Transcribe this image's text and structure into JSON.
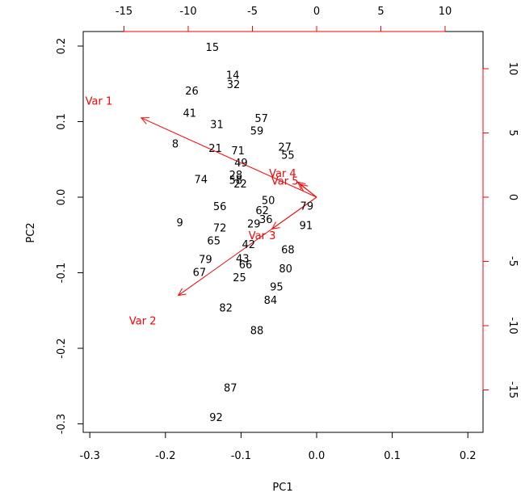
{
  "colors": {
    "axis": "#000000",
    "loading": "#ff0000",
    "obs": "#000000"
  },
  "chart_data": {
    "type": "scatter",
    "subtype": "biplot",
    "title": "",
    "xlabel": "PC1",
    "ylabel": "PC2",
    "xlim": [
      -0.3,
      0.2
    ],
    "ylim": [
      -0.3,
      0.2
    ],
    "xticks": [
      -0.3,
      -0.2,
      -0.1,
      0.0,
      0.1,
      0.2
    ],
    "xtick_labels": [
      "-0.3",
      "-0.2",
      "-0.1",
      "0.0",
      "0.1",
      "0.2"
    ],
    "yticks": [
      -0.3,
      -0.2,
      -0.1,
      0.0,
      0.1,
      0.2
    ],
    "ytick_labels": [
      "-0.3",
      "-0.2",
      "-0.1",
      "0.0",
      "0.1",
      "0.2"
    ],
    "top_ticks": [
      -15,
      -10,
      -5,
      0,
      5,
      10
    ],
    "top_tick_labels": [
      "-15",
      "-10",
      "-5",
      "0",
      "5",
      "10"
    ],
    "right_ticks": [
      10,
      5,
      0,
      -5,
      -10,
      -15
    ],
    "right_tick_labels": [
      "10",
      "5",
      "0",
      "-5",
      "-10",
      "-15"
    ],
    "points": [
      {
        "label": "15",
        "x": -0.138,
        "y": 0.199
      },
      {
        "label": "14",
        "x": -0.111,
        "y": 0.162
      },
      {
        "label": "32",
        "x": -0.11,
        "y": 0.15
      },
      {
        "label": "26",
        "x": -0.165,
        "y": 0.141
      },
      {
        "label": "41",
        "x": -0.168,
        "y": 0.112
      },
      {
        "label": "57",
        "x": -0.073,
        "y": 0.105
      },
      {
        "label": "31",
        "x": -0.132,
        "y": 0.097
      },
      {
        "label": "59",
        "x": -0.079,
        "y": 0.088
      },
      {
        "label": "8",
        "x": -0.187,
        "y": 0.071
      },
      {
        "label": "21",
        "x": -0.134,
        "y": 0.065
      },
      {
        "label": "71",
        "x": -0.104,
        "y": 0.062
      },
      {
        "label": "27",
        "x": -0.042,
        "y": 0.067
      },
      {
        "label": "55",
        "x": -0.038,
        "y": 0.056
      },
      {
        "label": "49",
        "x": -0.1,
        "y": 0.046
      },
      {
        "label": "74",
        "x": -0.153,
        "y": 0.024
      },
      {
        "label": "28",
        "x": -0.107,
        "y": 0.03
      },
      {
        "label": "58",
        "x": -0.107,
        "y": 0.023
      },
      {
        "label": "22",
        "x": -0.101,
        "y": 0.018
      },
      {
        "label": "56",
        "x": -0.128,
        "y": -0.012
      },
      {
        "label": "50",
        "x": -0.064,
        "y": -0.004
      },
      {
        "label": "62",
        "x": -0.072,
        "y": -0.017
      },
      {
        "label": "79",
        "x": -0.013,
        "y": -0.011
      },
      {
        "label": "36",
        "x": -0.067,
        "y": -0.029
      },
      {
        "label": "29",
        "x": -0.083,
        "y": -0.035
      },
      {
        "label": "9",
        "x": -0.181,
        "y": -0.033
      },
      {
        "label": "72",
        "x": -0.128,
        "y": -0.04
      },
      {
        "label": "91",
        "x": -0.014,
        "y": -0.037
      },
      {
        "label": "42",
        "x": -0.09,
        "y": -0.062
      },
      {
        "label": "65",
        "x": -0.136,
        "y": -0.057
      },
      {
        "label": "68",
        "x": -0.038,
        "y": -0.069
      },
      {
        "label": "43",
        "x": -0.098,
        "y": -0.081
      },
      {
        "label": "79",
        "x": -0.147,
        "y": -0.082
      },
      {
        "label": "66",
        "x": -0.094,
        "y": -0.089
      },
      {
        "label": "80",
        "x": -0.041,
        "y": -0.094
      },
      {
        "label": "67",
        "x": -0.155,
        "y": -0.099
      },
      {
        "label": "25",
        "x": -0.102,
        "y": -0.106
      },
      {
        "label": "95",
        "x": -0.053,
        "y": -0.118
      },
      {
        "label": "84",
        "x": -0.061,
        "y": -0.136
      },
      {
        "label": "82",
        "x": -0.12,
        "y": -0.146
      },
      {
        "label": "88",
        "x": -0.079,
        "y": -0.176
      },
      {
        "label": "87",
        "x": -0.114,
        "y": -0.252
      },
      {
        "label": "92",
        "x": -0.133,
        "y": -0.291
      }
    ],
    "loadings": [
      {
        "name": "Var 1",
        "x": -0.232,
        "y": 0.105,
        "label_x": -0.288,
        "label_y": 0.128
      },
      {
        "name": "Var 2",
        "x": -0.183,
        "y": -0.13,
        "label_x": -0.23,
        "label_y": -0.163
      },
      {
        "name": "Var 3",
        "x": -0.059,
        "y": -0.042,
        "label_x": -0.072,
        "label_y": -0.05
      },
      {
        "name": "Var 4",
        "x": -0.025,
        "y": 0.02,
        "label_x": -0.045,
        "label_y": 0.032
      },
      {
        "name": "Var 5",
        "x": -0.022,
        "y": 0.017,
        "label_x": -0.042,
        "label_y": 0.022
      }
    ]
  }
}
